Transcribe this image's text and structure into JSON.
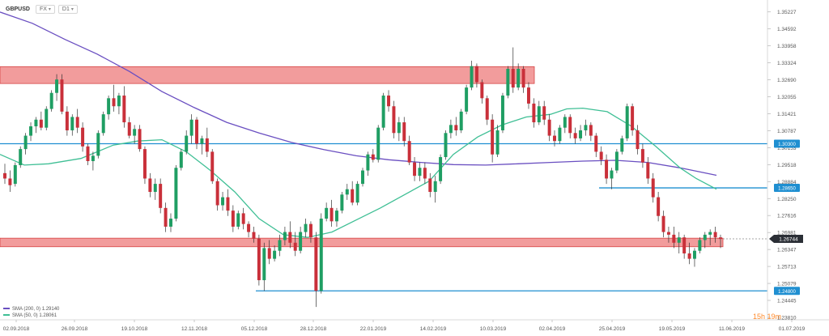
{
  "toolbar": {
    "symbol": "GBPUSD",
    "timeframe": "D1",
    "type_label": "FX"
  },
  "countdown": "15h 19m",
  "chart_data": {
    "type": "candlestick",
    "symbol": "GBPUSD",
    "interval": "D1",
    "x_labels": [
      "02.09.2018",
      "26.09.2018",
      "19.10.2018",
      "12.11.2018",
      "05.12.2018",
      "28.12.2018",
      "22.01.2019",
      "14.02.2019",
      "10.03.2019",
      "02.04.2019",
      "25.04.2019",
      "19.05.2019",
      "11.06.2019",
      "01.07.2019"
    ],
    "y_ticks": [
      "1.35227",
      "1.34592",
      "1.33958",
      "1.33324",
      "1.32690",
      "1.32055",
      "1.31421",
      "1.30787",
      "1.30153",
      "1.29518",
      "1.28884",
      "1.28250",
      "1.27616",
      "1.26981",
      "1.26347",
      "1.25713",
      "1.25079",
      "1.24445",
      "1.23810"
    ],
    "ylim": [
      1.2381,
      1.3555
    ],
    "current_price": "1.26744",
    "horizontal_levels": [
      {
        "label": "1.30300",
        "value": 1.303,
        "color": "#1f8fd1"
      },
      {
        "label": "1.28650",
        "value": 1.2865,
        "color": "#1f8fd1"
      },
      {
        "label": "1.24800",
        "value": 1.248,
        "color": "#1f8fd1"
      }
    ],
    "zones": [
      {
        "from": 1.3255,
        "to": 1.3318,
        "color": "#ee7b7b"
      },
      {
        "from": 1.2645,
        "to": 1.2677,
        "color": "#ee7b7b"
      }
    ],
    "indicators": [
      {
        "name": "SMA (200, 0)",
        "value": "1.29140",
        "color": "#6a4fc1",
        "points": [
          [
            0,
            1.3522
          ],
          [
            40,
            1.348
          ],
          [
            80,
            1.342
          ],
          [
            120,
            1.3365
          ],
          [
            160,
            1.33
          ],
          [
            200,
            1.3225
          ],
          [
            240,
            1.3165
          ],
          [
            280,
            1.311
          ],
          [
            320,
            1.307
          ],
          [
            360,
            1.3035
          ],
          [
            400,
            1.3008
          ],
          [
            440,
            1.2985
          ],
          [
            480,
            1.297
          ],
          [
            520,
            1.296
          ],
          [
            560,
            1.2952
          ],
          [
            600,
            1.295
          ],
          [
            640,
            1.2955
          ],
          [
            680,
            1.296
          ],
          [
            720,
            1.2965
          ],
          [
            760,
            1.2968
          ],
          [
            800,
            1.296
          ],
          [
            840,
            1.294
          ],
          [
            885,
            1.2912
          ]
        ]
      },
      {
        "name": "SMA (50, 0)",
        "value": "1.28061",
        "color": "#3fbf95",
        "points": [
          [
            0,
            1.299
          ],
          [
            30,
            1.295
          ],
          [
            60,
            1.2955
          ],
          [
            100,
            1.2975
          ],
          [
            140,
            1.3025
          ],
          [
            170,
            1.304
          ],
          [
            200,
            1.3045
          ],
          [
            230,
            1.3
          ],
          [
            260,
            1.293
          ],
          [
            290,
            1.285
          ],
          [
            320,
            1.275
          ],
          [
            350,
            1.269
          ],
          [
            380,
            1.268
          ],
          [
            410,
            1.27
          ],
          [
            440,
            1.2745
          ],
          [
            470,
            1.279
          ],
          [
            500,
            1.284
          ],
          [
            530,
            1.289
          ],
          [
            560,
            1.299
          ],
          [
            590,
            1.3055
          ],
          [
            620,
            1.31
          ],
          [
            650,
            1.313
          ],
          [
            680,
            1.314
          ],
          [
            700,
            1.316
          ],
          [
            720,
            1.3163
          ],
          [
            750,
            1.315
          ],
          [
            780,
            1.3095
          ],
          [
            810,
            1.302
          ],
          [
            840,
            1.294
          ],
          [
            860,
            1.29
          ],
          [
            885,
            1.286
          ]
        ]
      }
    ],
    "candles": [
      [
        1.292,
        1.2955,
        1.288,
        1.29
      ],
      [
        1.29,
        1.293,
        1.285,
        1.2875
      ],
      [
        1.288,
        1.296,
        1.287,
        1.295
      ],
      [
        1.295,
        1.302,
        1.294,
        1.301
      ],
      [
        1.301,
        1.307,
        1.299,
        1.306
      ],
      [
        1.306,
        1.311,
        1.304,
        1.3095
      ],
      [
        1.3095,
        1.313,
        1.307,
        1.312
      ],
      [
        1.312,
        1.315,
        1.308,
        1.309
      ],
      [
        1.309,
        1.317,
        1.308,
        1.316
      ],
      [
        1.316,
        1.323,
        1.315,
        1.322
      ],
      [
        1.322,
        1.329,
        1.319,
        1.327
      ],
      [
        1.327,
        1.329,
        1.314,
        1.315
      ],
      [
        1.315,
        1.317,
        1.306,
        1.308
      ],
      [
        1.308,
        1.314,
        1.306,
        1.313
      ],
      [
        1.313,
        1.316,
        1.307,
        1.309
      ],
      [
        1.309,
        1.311,
        1.3,
        1.302
      ],
      [
        1.302,
        1.303,
        1.295,
        1.2965
      ],
      [
        1.2965,
        1.3,
        1.293,
        1.2985
      ],
      [
        1.2985,
        1.308,
        1.2975,
        1.307
      ],
      [
        1.307,
        1.315,
        1.306,
        1.314
      ],
      [
        1.314,
        1.321,
        1.312,
        1.32
      ],
      [
        1.32,
        1.325,
        1.315,
        1.317
      ],
      [
        1.317,
        1.322,
        1.314,
        1.321
      ],
      [
        1.321,
        1.3245,
        1.309,
        1.311
      ],
      [
        1.311,
        1.313,
        1.305,
        1.306
      ],
      [
        1.306,
        1.31,
        1.303,
        1.3085
      ],
      [
        1.3085,
        1.31,
        1.3,
        1.301
      ],
      [
        1.301,
        1.302,
        1.288,
        1.29
      ],
      [
        1.29,
        1.292,
        1.283,
        1.285
      ],
      [
        1.285,
        1.29,
        1.282,
        1.288
      ],
      [
        1.288,
        1.29,
        1.277,
        1.279
      ],
      [
        1.279,
        1.281,
        1.27,
        1.272
      ],
      [
        1.272,
        1.277,
        1.27,
        1.275
      ],
      [
        1.275,
        1.295,
        1.274,
        1.294
      ],
      [
        1.294,
        1.301,
        1.293,
        1.3
      ],
      [
        1.3,
        1.308,
        1.299,
        1.306
      ],
      [
        1.306,
        1.314,
        1.303,
        1.312
      ],
      [
        1.312,
        1.313,
        1.301,
        1.303
      ],
      [
        1.303,
        1.306,
        1.299,
        1.305
      ],
      [
        1.305,
        1.309,
        1.298,
        1.3
      ],
      [
        1.3,
        1.301,
        1.288,
        1.289
      ],
      [
        1.289,
        1.29,
        1.278,
        1.28
      ],
      [
        1.28,
        1.285,
        1.278,
        1.283
      ],
      [
        1.283,
        1.286,
        1.276,
        1.278
      ],
      [
        1.278,
        1.28,
        1.27,
        1.272
      ],
      [
        1.272,
        1.278,
        1.271,
        1.277
      ],
      [
        1.277,
        1.279,
        1.271,
        1.273
      ],
      [
        1.273,
        1.274,
        1.268,
        1.27
      ],
      [
        1.27,
        1.272,
        1.266,
        1.2675
      ],
      [
        1.2675,
        1.269,
        1.25,
        1.252
      ],
      [
        1.252,
        1.266,
        1.248,
        1.264
      ],
      [
        1.264,
        1.267,
        1.258,
        1.26
      ],
      [
        1.26,
        1.265,
        1.259,
        1.263
      ],
      [
        1.263,
        1.269,
        1.261,
        1.267
      ],
      [
        1.267,
        1.272,
        1.265,
        1.27
      ],
      [
        1.27,
        1.274,
        1.264,
        1.266
      ],
      [
        1.266,
        1.27,
        1.261,
        1.263
      ],
      [
        1.263,
        1.272,
        1.262,
        1.27
      ],
      [
        1.27,
        1.275,
        1.268,
        1.273
      ],
      [
        1.273,
        1.274,
        1.266,
        1.268
      ],
      [
        1.268,
        1.27,
        1.242,
        1.248
      ],
      [
        1.248,
        1.277,
        1.247,
        1.275
      ],
      [
        1.275,
        1.281,
        1.274,
        1.279
      ],
      [
        1.279,
        1.282,
        1.272,
        1.274
      ],
      [
        1.274,
        1.279,
        1.272,
        1.278
      ],
      [
        1.278,
        1.285,
        1.277,
        1.284
      ],
      [
        1.284,
        1.288,
        1.282,
        1.286
      ],
      [
        1.286,
        1.289,
        1.28,
        1.281
      ],
      [
        1.281,
        1.289,
        1.28,
        1.288
      ],
      [
        1.288,
        1.294,
        1.287,
        1.293
      ],
      [
        1.293,
        1.3,
        1.291,
        1.299
      ],
      [
        1.299,
        1.301,
        1.296,
        1.297
      ],
      [
        1.297,
        1.31,
        1.296,
        1.309
      ],
      [
        1.309,
        1.322,
        1.308,
        1.321
      ],
      [
        1.321,
        1.323,
        1.315,
        1.317
      ],
      [
        1.317,
        1.319,
        1.305,
        1.307
      ],
      [
        1.307,
        1.313,
        1.304,
        1.311
      ],
      [
        1.311,
        1.313,
        1.302,
        1.304
      ],
      [
        1.304,
        1.306,
        1.295,
        1.296
      ],
      [
        1.296,
        1.298,
        1.289,
        1.291
      ],
      [
        1.291,
        1.296,
        1.289,
        1.294
      ],
      [
        1.294,
        1.296,
        1.288,
        1.29
      ],
      [
        1.29,
        1.292,
        1.283,
        1.285
      ],
      [
        1.285,
        1.291,
        1.281,
        1.289
      ],
      [
        1.289,
        1.299,
        1.288,
        1.298
      ],
      [
        1.298,
        1.308,
        1.297,
        1.307
      ],
      [
        1.307,
        1.312,
        1.305,
        1.31
      ],
      [
        1.31,
        1.313,
        1.306,
        1.308
      ],
      [
        1.308,
        1.316,
        1.307,
        1.315
      ],
      [
        1.315,
        1.325,
        1.314,
        1.324
      ],
      [
        1.324,
        1.334,
        1.323,
        1.332
      ],
      [
        1.332,
        1.333,
        1.324,
        1.326
      ],
      [
        1.326,
        1.327,
        1.318,
        1.32
      ],
      [
        1.32,
        1.321,
        1.31,
        1.312
      ],
      [
        1.312,
        1.314,
        1.296,
        1.299
      ],
      [
        1.299,
        1.31,
        1.298,
        1.308
      ],
      [
        1.308,
        1.322,
        1.307,
        1.321
      ],
      [
        1.321,
        1.332,
        1.32,
        1.331
      ],
      [
        1.331,
        1.339,
        1.322,
        1.324
      ],
      [
        1.324,
        1.333,
        1.323,
        1.331
      ],
      [
        1.331,
        1.332,
        1.322,
        1.324
      ],
      [
        1.324,
        1.326,
        1.316,
        1.318
      ],
      [
        1.318,
        1.32,
        1.309,
        1.311
      ],
      [
        1.311,
        1.319,
        1.31,
        1.317
      ],
      [
        1.317,
        1.319,
        1.31,
        1.312
      ],
      [
        1.312,
        1.314,
        1.304,
        1.306
      ],
      [
        1.306,
        1.308,
        1.302,
        1.304
      ],
      [
        1.304,
        1.31,
        1.303,
        1.309
      ],
      [
        1.309,
        1.314,
        1.307,
        1.313
      ],
      [
        1.313,
        1.314,
        1.305,
        1.307
      ],
      [
        1.307,
        1.309,
        1.303,
        1.305
      ],
      [
        1.305,
        1.31,
        1.304,
        1.308
      ],
      [
        1.308,
        1.312,
        1.306,
        1.31
      ],
      [
        1.31,
        1.311,
        1.304,
        1.306
      ],
      [
        1.306,
        1.307,
        1.298,
        1.3
      ],
      [
        1.3,
        1.302,
        1.295,
        1.297
      ],
      [
        1.297,
        1.299,
        1.288,
        1.29
      ],
      [
        1.29,
        1.294,
        1.286,
        1.293
      ],
      [
        1.293,
        1.301,
        1.292,
        1.3
      ],
      [
        1.3,
        1.306,
        1.299,
        1.305
      ],
      [
        1.305,
        1.318,
        1.304,
        1.317
      ],
      [
        1.317,
        1.318,
        1.306,
        1.308
      ],
      [
        1.308,
        1.31,
        1.299,
        1.301
      ],
      [
        1.301,
        1.303,
        1.294,
        1.296
      ],
      [
        1.296,
        1.298,
        1.288,
        1.29
      ],
      [
        1.29,
        1.292,
        1.281,
        1.283
      ],
      [
        1.283,
        1.285,
        1.274,
        1.276
      ],
      [
        1.276,
        1.278,
        1.268,
        1.27
      ],
      [
        1.27,
        1.272,
        1.266,
        1.269
      ],
      [
        1.269,
        1.272,
        1.264,
        1.266
      ],
      [
        1.266,
        1.27,
        1.262,
        1.268
      ],
      [
        1.268,
        1.269,
        1.26,
        1.262
      ],
      [
        1.262,
        1.266,
        1.258,
        1.26
      ],
      [
        1.26,
        1.264,
        1.257,
        1.263
      ],
      [
        1.263,
        1.268,
        1.262,
        1.267
      ],
      [
        1.267,
        1.27,
        1.264,
        1.269
      ],
      [
        1.269,
        1.271,
        1.265,
        1.27
      ],
      [
        1.27,
        1.272,
        1.266,
        1.268
      ],
      [
        1.268,
        1.269,
        1.264,
        1.2674
      ]
    ],
    "legend": [
      {
        "name": "SMA (200, 0)",
        "value": "1.29140",
        "color": "#6a4fc1"
      },
      {
        "name": "SMA (50, 0)",
        "value": "1.28061",
        "color": "#3fbf95"
      }
    ]
  }
}
